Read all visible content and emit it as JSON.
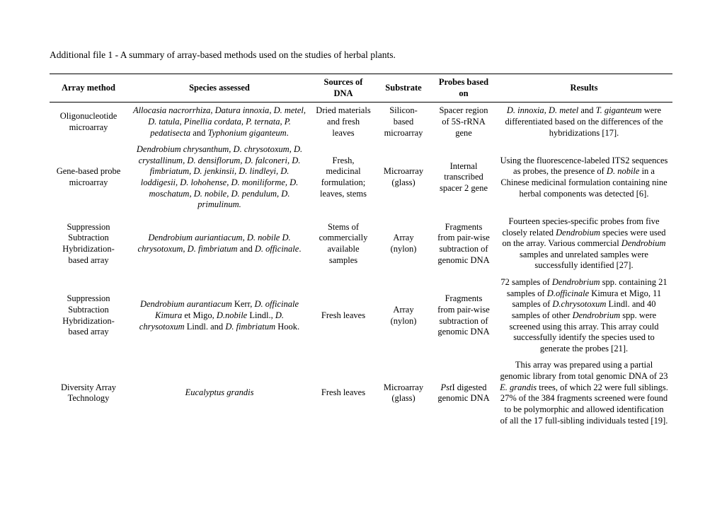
{
  "title": "Additional file 1 - A summary of array-based methods used on the studies of herbal plants.",
  "headers": {
    "c1": "Array method",
    "c2": "Species assessed",
    "c3": "Sources of DNA",
    "c4": "Substrate",
    "c5": "Probes based on",
    "c6": "Results"
  },
  "rows": [
    {
      "method": "Oligonucleotide microarray",
      "species": "<span class=\"i\">Allocasia nacrorrhiza</span>, <span class=\"i\">Datura innoxia</span>, <span class=\"i\">D. metel</span>, <span class=\"i\">D. tatula</span>, <span class=\"i\">Pinellia cordata</span>, <span class=\"i\">P. ternata</span>, <span class=\"i\">P. pedatisecta</span> and <span class=\"i\">Typhonium giganteum</span>.",
      "sources": "Dried materials and fresh leaves",
      "substrate": "Silicon-based microarray",
      "probes": "Spacer region of 5S-rRNA gene",
      "results": "<span class=\"i\">D. innoxia</span>, <span class=\"i\">D. metel</span> and <span class=\"i\">T. giganteum</span> were differentiated based on the differences of the hybridizations [17]."
    },
    {
      "method": "Gene-based probe microarray",
      "species": "<span class=\"i\">Dendrobium chrysanthum, D. chrysotoxum, D. crystallinum, D. densiflorum, D. falconeri, D. fimbriatum, D. jenkinsii, D. lindleyi, D. loddigesii, D. lohohense, D. moniliforme, D. moschatum, D. nobile, D. pendulum, D. primulinum.</span>",
      "sources": "Fresh, medicinal formulation; leaves, stems",
      "substrate": "Microarray (glass)",
      "probes": "Internal transcribed spacer 2 gene",
      "results": "Using the fluorescence-labeled ITS2 sequences as probes, the presence of <span class=\"i\">D. nobile</span> in a Chinese medicinal formulation containing nine herbal components was detected [6]."
    },
    {
      "method": "Suppression Subtraction Hybridization-based array",
      "species": "<span class=\"i\">Dendrobium auriantiacum, D. nobile D. chrysotoxum, D. fimbriatum</span> and <span class=\"i\">D. officinale</span>.",
      "sources": "Stems of commercially available samples",
      "substrate": "Array (nylon)",
      "probes": "Fragments from pair-wise subtraction of genomic DNA",
      "results": "Fourteen species-specific probes from five closely related <span class=\"i\">Dendrobium</span> species were used on the array. Various commercial <span class=\"i\">Dendrobium</span> samples and unrelated samples were successfully identified [27]."
    },
    {
      "method": "Suppression Subtraction Hybridization-based array",
      "species": "<span class=\"i\">Dendrobium aurantiacum</span> Kerr, <span class=\"i\">D. officinale Kimura</span> et Migo, <span class=\"i\">D.nobile</span> Lindl., <span class=\"i\">D. chrysotoxum</span> Lindl. and <span class=\"i\">D. fimbriatum</span> Hook.",
      "sources": "Fresh leaves",
      "substrate": "Array (nylon)",
      "probes": "Fragments from pair-wise subtraction of genomic DNA",
      "results": "72 samples of <span class=\"i\">Dendrobrium</span> spp. containing 21 samples of <span class=\"i\">D.officinale</span> Kimura et Migo, 11 samples of <span class=\"i\">D.chrysotoxum</span> Lindl. and 40 samples of other <span class=\"i\">Dendrobrium</span> spp. were screened using this array. This array could successfully identify the species used to generate the probes [21]."
    },
    {
      "method": "Diversity Array Technology",
      "species": "<span class=\"i\">Eucalyptus grandis</span>",
      "sources": "Fresh leaves",
      "substrate": "Microarray (glass)",
      "probes": "<span class=\"i\">Pst</span>I digested genomic DNA",
      "results": "This array was prepared using a partial genomic library from total genomic DNA of 23 <span class=\"i\">E. grandis</span> trees, of which 22 were full siblings. 27% of the 384 fragments screened were found to be polymorphic and allowed identification of all the 17 full-sibling individuals tested [19]."
    }
  ]
}
